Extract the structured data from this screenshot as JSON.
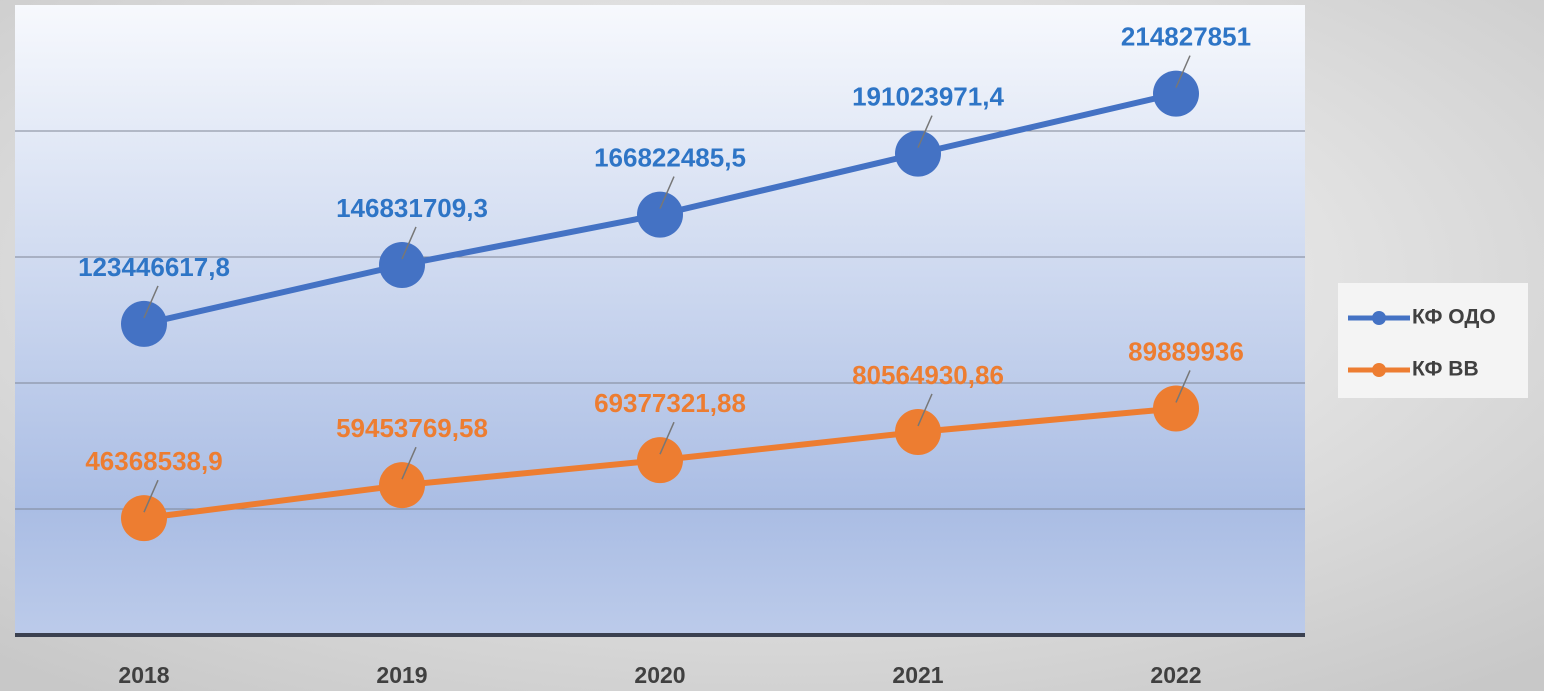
{
  "chart_data": {
    "type": "line",
    "categories": [
      "2018",
      "2019",
      "2020",
      "2021",
      "2022"
    ],
    "series": [
      {
        "name": "КФ ОДО",
        "color": "#4472c4",
        "label_color": "#2e75c6",
        "values": [
          123446617.8,
          146831709.3,
          166822485.5,
          191023971.4,
          214827851
        ],
        "value_labels": [
          "123446617,8",
          "146831709,3",
          "166822485,5",
          "191023971,4",
          "214827851"
        ]
      },
      {
        "name": "КФ ВВ",
        "color": "#ed7d31",
        "label_color": "#ed7d31",
        "values": [
          46368538.9,
          59453769.58,
          69377321.88,
          80564930.86,
          89889936
        ],
        "value_labels": [
          "46368538,9",
          "59453769,58",
          "69377321,88",
          "80564930,86",
          "89889936"
        ]
      }
    ],
    "ylim": [
      0,
      250000000
    ],
    "yticks": [
      0,
      50000000,
      100000000,
      150000000,
      200000000,
      250000000
    ],
    "grid": true,
    "legend": "right"
  }
}
